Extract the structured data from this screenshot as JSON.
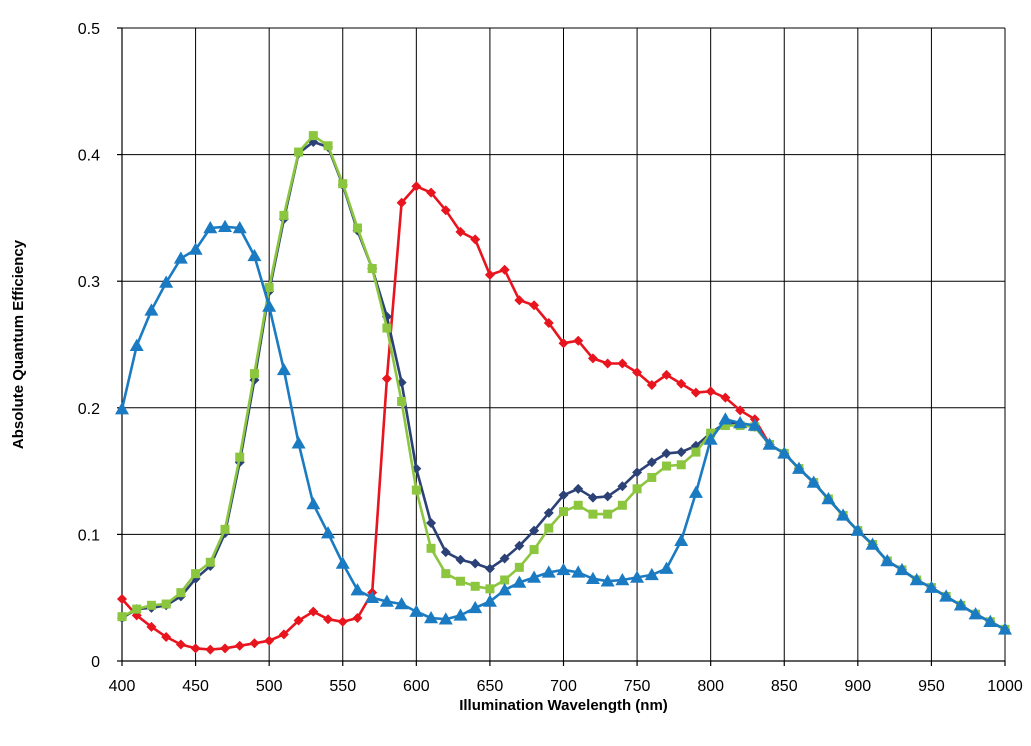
{
  "chart_data": {
    "type": "line",
    "title": "",
    "xlabel": "Illumination Wavelength (nm)",
    "ylabel": "Absolute Quantum Efficiency",
    "xlim": [
      400,
      1000
    ],
    "ylim": [
      0,
      0.5
    ],
    "xticks": [
      400,
      450,
      500,
      550,
      600,
      650,
      700,
      750,
      800,
      850,
      900,
      950,
      1000
    ],
    "yticks": [
      0,
      0.1,
      0.2,
      0.3,
      0.4,
      0.5
    ],
    "ytick_labels": [
      "0",
      "0.1",
      "0.2",
      "0.3",
      "0.4",
      "0.5"
    ],
    "grid": true,
    "legend": "none",
    "x": [
      400,
      410,
      420,
      430,
      440,
      450,
      460,
      470,
      480,
      490,
      500,
      510,
      520,
      530,
      540,
      550,
      560,
      570,
      580,
      590,
      600,
      610,
      620,
      630,
      640,
      650,
      660,
      670,
      680,
      690,
      700,
      710,
      720,
      730,
      740,
      750,
      760,
      770,
      780,
      790,
      800,
      810,
      820,
      830,
      840,
      850,
      860,
      870,
      880,
      890,
      900,
      910,
      920,
      930,
      940,
      950,
      960,
      970,
      980,
      990,
      1000
    ],
    "series": [
      {
        "color": "#e8141e",
        "marker": "diamond",
        "values": [
          0.049,
          0.036,
          0.027,
          0.019,
          0.013,
          0.01,
          0.009,
          0.01,
          0.012,
          0.014,
          0.016,
          0.021,
          0.032,
          0.039,
          0.033,
          0.031,
          0.034,
          0.054,
          0.223,
          0.362,
          0.375,
          0.37,
          0.356,
          0.339,
          0.333,
          0.305,
          0.309,
          0.285,
          0.281,
          0.267,
          0.251,
          0.253,
          0.239,
          0.235,
          0.235,
          0.228,
          0.218,
          0.226,
          0.219,
          0.212,
          0.213,
          0.208,
          0.198,
          0.191,
          0.171,
          0.164,
          0.152,
          0.141,
          0.128,
          0.115,
          0.103,
          0.092,
          0.079,
          0.072,
          0.064,
          0.058,
          0.051,
          0.044,
          0.037,
          0.031,
          0.025
        ]
      },
      {
        "color": "#2c4277",
        "marker": "diamond",
        "values": [
          0.034,
          0.041,
          0.042,
          0.044,
          0.051,
          0.065,
          0.075,
          0.101,
          0.157,
          0.222,
          0.292,
          0.349,
          0.401,
          0.41,
          0.406,
          0.376,
          0.34,
          0.31,
          0.272,
          0.22,
          0.152,
          0.109,
          0.086,
          0.08,
          0.077,
          0.073,
          0.081,
          0.091,
          0.103,
          0.117,
          0.131,
          0.136,
          0.129,
          0.13,
          0.138,
          0.149,
          0.157,
          0.164,
          0.165,
          0.17,
          0.18,
          0.188,
          0.188,
          0.185,
          0.171,
          0.164,
          0.152,
          0.141,
          0.128,
          0.115,
          0.103,
          0.092,
          0.079,
          0.072,
          0.064,
          0.058,
          0.051,
          0.044,
          0.037,
          0.031,
          0.025
        ]
      },
      {
        "color": "#8cc63f",
        "marker": "square",
        "values": [
          0.035,
          0.041,
          0.044,
          0.045,
          0.054,
          0.069,
          0.078,
          0.104,
          0.161,
          0.227,
          0.295,
          0.352,
          0.402,
          0.415,
          0.407,
          0.377,
          0.342,
          0.31,
          0.263,
          0.205,
          0.135,
          0.089,
          0.069,
          0.063,
          0.059,
          0.057,
          0.064,
          0.074,
          0.088,
          0.105,
          0.118,
          0.123,
          0.116,
          0.116,
          0.123,
          0.136,
          0.145,
          0.154,
          0.155,
          0.165,
          0.18,
          0.186,
          0.186,
          0.185,
          0.171,
          0.164,
          0.152,
          0.141,
          0.128,
          0.115,
          0.103,
          0.092,
          0.079,
          0.072,
          0.064,
          0.058,
          0.051,
          0.044,
          0.037,
          0.031,
          0.025
        ]
      },
      {
        "color": "#1b7bc2",
        "marker": "triangle",
        "values": [
          0.199,
          0.249,
          0.277,
          0.299,
          0.318,
          0.325,
          0.342,
          0.343,
          0.342,
          0.32,
          0.28,
          0.23,
          0.172,
          0.124,
          0.101,
          0.077,
          0.056,
          0.05,
          0.047,
          0.045,
          0.039,
          0.034,
          0.033,
          0.036,
          0.042,
          0.047,
          0.056,
          0.062,
          0.066,
          0.07,
          0.072,
          0.07,
          0.065,
          0.063,
          0.064,
          0.066,
          0.068,
          0.073,
          0.095,
          0.133,
          0.175,
          0.191,
          0.188,
          0.186,
          0.171,
          0.164,
          0.152,
          0.141,
          0.128,
          0.115,
          0.103,
          0.092,
          0.079,
          0.072,
          0.064,
          0.058,
          0.051,
          0.044,
          0.037,
          0.031,
          0.025
        ]
      }
    ]
  }
}
